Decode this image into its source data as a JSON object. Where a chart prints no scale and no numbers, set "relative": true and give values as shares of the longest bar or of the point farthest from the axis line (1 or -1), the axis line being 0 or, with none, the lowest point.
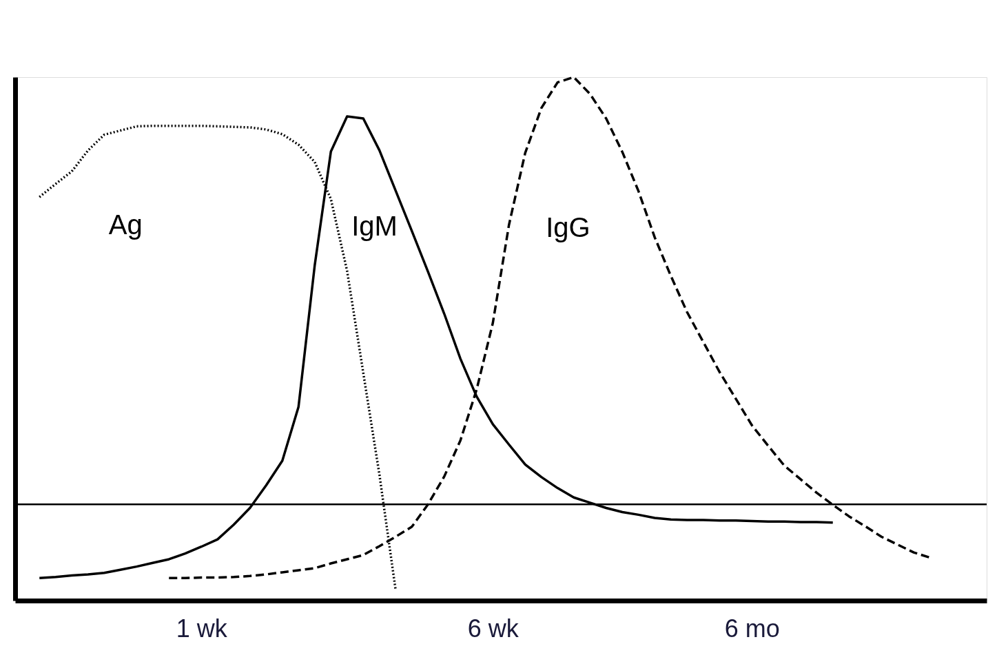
{
  "chart_data": {
    "type": "line",
    "relative": true,
    "tick_labels": "x",
    "categories": [
      null,
      null,
      null,
      null,
      null,
      null,
      null,
      null,
      null,
      null,
      null,
      "1 wk",
      null,
      null,
      null,
      null,
      null,
      null,
      null,
      null,
      null,
      null,
      null,
      null,
      null,
      null,
      null,
      null,
      null,
      "6 wk",
      null,
      null,
      null,
      null,
      null,
      null,
      null,
      null,
      null,
      null,
      null,
      null,
      null,
      null,
      null,
      "6 mo",
      null,
      null,
      null,
      null,
      null,
      null,
      null,
      null,
      null,
      null,
      null,
      null,
      null,
      null
    ],
    "series": [
      {
        "name": "Ag",
        "color": "#000000",
        "line_style": "dotted",
        "values": [
          null,
          0.771,
          0.796,
          0.82,
          0.86,
          0.89,
          0.898,
          0.906,
          0.907,
          0.907,
          0.907,
          0.907,
          0.906,
          0.905,
          0.904,
          0.9,
          0.891,
          0.871,
          0.838,
          0.767,
          0.63,
          0.435,
          0.24,
          0.02,
          null,
          null,
          null,
          null,
          null,
          null,
          null,
          null,
          null,
          null,
          null,
          null,
          null,
          null,
          null,
          null,
          null,
          null,
          null,
          null,
          null,
          null,
          null,
          null,
          null,
          null,
          null,
          null,
          null,
          null,
          null,
          null,
          null,
          null,
          null,
          null
        ]
      },
      {
        "name": "IgM",
        "color": "#000000",
        "line_style": "solid",
        "values": [
          null,
          0.043,
          0.045,
          0.048,
          0.05,
          0.053,
          0.059,
          0.065,
          0.072,
          0.079,
          0.09,
          0.103,
          0.117,
          0.145,
          0.177,
          0.22,
          0.267,
          0.37,
          0.64,
          0.858,
          0.925,
          0.921,
          0.86,
          0.783,
          0.706,
          0.628,
          0.548,
          0.462,
          0.39,
          0.337,
          0.298,
          0.26,
          0.236,
          0.215,
          0.197,
          0.187,
          0.177,
          0.169,
          0.164,
          0.158,
          0.155,
          0.154,
          0.154,
          0.153,
          0.153,
          0.152,
          0.151,
          0.151,
          0.15,
          0.15,
          0.149,
          null,
          null,
          null,
          null,
          null,
          null,
          null,
          null,
          null
        ]
      },
      {
        "name": "IgG",
        "color": "#000000",
        "line_style": "dashed",
        "values": [
          null,
          null,
          null,
          null,
          null,
          null,
          null,
          null,
          null,
          0.043,
          0.043,
          0.044,
          0.044,
          0.045,
          0.047,
          0.05,
          0.054,
          0.058,
          0.062,
          0.071,
          0.079,
          0.087,
          0.104,
          0.122,
          0.141,
          0.184,
          0.237,
          0.306,
          0.403,
          0.53,
          0.718,
          0.855,
          0.941,
          0.99,
          1,
          0.968,
          0.921,
          0.857,
          0.782,
          0.694,
          0.62,
          0.551,
          0.494,
          0.437,
          0.386,
          0.335,
          0.296,
          0.258,
          0.232,
          0.206,
          0.183,
          0.161,
          0.142,
          0.122,
          0.107,
          0.092,
          0.082,
          null,
          null,
          null
        ]
      }
    ],
    "ref_lines": [
      {
        "axis": "y",
        "value": 0.184,
        "color": "#000000",
        "line_style": "solid"
      }
    ]
  }
}
